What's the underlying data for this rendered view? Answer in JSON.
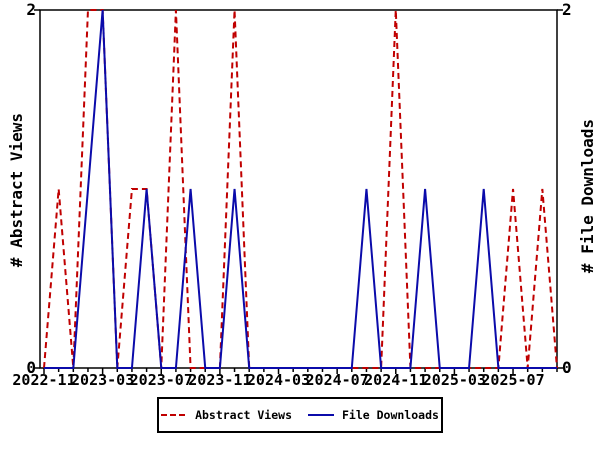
{
  "chart_data": {
    "type": "line",
    "title": "",
    "x_range": [
      "2022-11",
      "2025-10"
    ],
    "x_months": [
      "2022-11",
      "2022-12",
      "2023-01",
      "2023-02",
      "2023-03",
      "2023-04",
      "2023-05",
      "2023-06",
      "2023-07",
      "2023-08",
      "2023-09",
      "2023-10",
      "2023-11",
      "2023-12",
      "2024-01",
      "2024-02",
      "2024-03",
      "2024-04",
      "2024-05",
      "2024-06",
      "2024-07",
      "2024-08",
      "2024-09",
      "2024-10",
      "2024-11",
      "2024-12",
      "2025-01",
      "2025-02",
      "2025-03",
      "2025-04",
      "2025-05",
      "2025-06",
      "2025-07",
      "2025-08",
      "2025-09",
      "2025-10"
    ],
    "x_tick_labels": [
      "2022-11",
      "2023-03",
      "2023-07",
      "2023-11",
      "2024-03",
      "2024-07",
      "2024-11",
      "2025-03",
      "2025-07"
    ],
    "series": [
      {
        "name": "Abstract Views",
        "color": "#c00000",
        "line_style": "dashed",
        "y_axis": "left",
        "values": [
          0,
          1,
          0,
          2,
          2,
          0,
          1,
          1,
          0,
          2,
          0,
          0,
          0,
          2,
          0,
          0,
          0,
          0,
          0,
          0,
          0,
          0,
          0,
          0,
          2,
          0,
          0,
          0,
          0,
          0,
          0,
          0,
          1,
          0,
          1,
          0
        ]
      },
      {
        "name": "File Downloads",
        "color": "#0b0baa",
        "line_style": "solid",
        "y_axis": "right",
        "values": [
          0,
          0,
          0,
          1,
          2,
          0,
          0,
          1,
          0,
          0,
          1,
          0,
          0,
          1,
          0,
          0,
          0,
          0,
          0,
          0,
          0,
          0,
          1,
          0,
          0,
          0,
          1,
          0,
          0,
          0,
          1,
          0,
          0,
          0,
          0,
          0
        ]
      }
    ],
    "ylabel_left": "# Abstract Views",
    "ylabel_right": "# File Downloads",
    "ylim": [
      0,
      2
    ],
    "y_tick_labels": [
      "0",
      "2"
    ],
    "grid": false,
    "legend_position": "bottom-center",
    "background_color": "#ffffff",
    "axis_color": "#000000"
  }
}
